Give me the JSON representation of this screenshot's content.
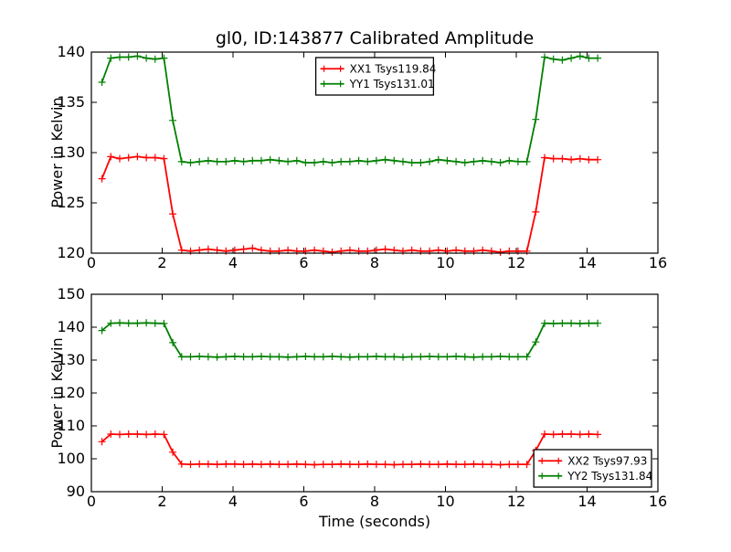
{
  "figure": {
    "background": "#ffffff",
    "axis_color": "#000000"
  },
  "chart_data": [
    {
      "type": "line",
      "title": "gl0, ID:143877 Calibrated Amplitude",
      "xlabel": "",
      "ylabel": "Power in Kelvin",
      "xlim": [
        0,
        16
      ],
      "ylim": [
        120,
        140
      ],
      "xticks": [
        0,
        2,
        4,
        6,
        8,
        10,
        12,
        14,
        16
      ],
      "yticks": [
        120,
        125,
        130,
        135,
        140
      ],
      "grid": false,
      "legend_position": "upper center",
      "x": [
        0.3,
        0.55,
        0.8,
        1.05,
        1.3,
        1.55,
        1.8,
        2.05,
        2.3,
        2.55,
        2.8,
        3.05,
        3.3,
        3.55,
        3.8,
        4.05,
        4.3,
        4.55,
        4.8,
        5.05,
        5.3,
        5.55,
        5.8,
        6.05,
        6.3,
        6.55,
        6.8,
        7.05,
        7.3,
        7.55,
        7.8,
        8.05,
        8.3,
        8.55,
        8.8,
        9.05,
        9.3,
        9.55,
        9.8,
        10.05,
        10.3,
        10.55,
        10.8,
        11.05,
        11.3,
        11.55,
        11.8,
        12.05,
        12.3,
        12.55,
        12.8,
        13.05,
        13.3,
        13.55,
        13.8,
        14.05,
        14.3
      ],
      "series": [
        {
          "name": "XX1 Tsys119.84",
          "color": "#ff0000",
          "marker": "+",
          "y": [
            127.4,
            129.6,
            129.4,
            129.5,
            129.6,
            129.5,
            129.5,
            129.4,
            123.9,
            120.3,
            120.2,
            120.3,
            120.4,
            120.3,
            120.2,
            120.3,
            120.4,
            120.5,
            120.3,
            120.2,
            120.2,
            120.3,
            120.2,
            120.2,
            120.3,
            120.2,
            120.1,
            120.2,
            120.3,
            120.2,
            120.2,
            120.3,
            120.4,
            120.3,
            120.2,
            120.3,
            120.2,
            120.2,
            120.3,
            120.2,
            120.3,
            120.2,
            120.2,
            120.3,
            120.2,
            120.1,
            120.2,
            120.2,
            120.2,
            124.1,
            129.5,
            129.4,
            129.4,
            129.3,
            129.4,
            129.3,
            129.3
          ]
        },
        {
          "name": "YY1 Tsys131.01",
          "color": "#008000",
          "marker": "+",
          "y": [
            137.0,
            139.4,
            139.5,
            139.5,
            139.6,
            139.4,
            139.3,
            139.4,
            133.2,
            129.1,
            129.0,
            129.1,
            129.2,
            129.1,
            129.1,
            129.2,
            129.1,
            129.2,
            129.2,
            129.3,
            129.2,
            129.1,
            129.2,
            129.0,
            129.0,
            129.1,
            129.0,
            129.1,
            129.1,
            129.2,
            129.1,
            129.2,
            129.3,
            129.2,
            129.1,
            129.0,
            129.0,
            129.1,
            129.3,
            129.2,
            129.1,
            129.0,
            129.1,
            129.2,
            129.1,
            129.0,
            129.2,
            129.1,
            129.1,
            133.3,
            139.5,
            139.3,
            139.2,
            139.4,
            139.6,
            139.4,
            139.4
          ]
        }
      ]
    },
    {
      "type": "line",
      "title": "",
      "xlabel": "Time (seconds)",
      "ylabel": "Power in Kelvin",
      "xlim": [
        0,
        16
      ],
      "ylim": [
        90,
        150
      ],
      "xticks": [
        0,
        2,
        4,
        6,
        8,
        10,
        12,
        14,
        16
      ],
      "yticks": [
        90,
        100,
        110,
        120,
        130,
        140,
        150
      ],
      "grid": false,
      "legend_position": "lower right",
      "x": [
        0.3,
        0.55,
        0.8,
        1.05,
        1.3,
        1.55,
        1.8,
        2.05,
        2.3,
        2.55,
        2.8,
        3.05,
        3.3,
        3.55,
        3.8,
        4.05,
        4.3,
        4.55,
        4.8,
        5.05,
        5.3,
        5.55,
        5.8,
        6.05,
        6.3,
        6.55,
        6.8,
        7.05,
        7.3,
        7.55,
        7.8,
        8.05,
        8.3,
        8.55,
        8.8,
        9.05,
        9.3,
        9.55,
        9.8,
        10.05,
        10.3,
        10.55,
        10.8,
        11.05,
        11.3,
        11.55,
        11.8,
        12.05,
        12.3,
        12.55,
        12.8,
        13.05,
        13.3,
        13.55,
        13.8,
        14.05,
        14.3
      ],
      "series": [
        {
          "name": "XX2 Tsys97.93",
          "color": "#ff0000",
          "marker": "+",
          "y": [
            105.2,
            107.5,
            107.4,
            107.5,
            107.5,
            107.4,
            107.5,
            107.4,
            102.0,
            98.4,
            98.3,
            98.4,
            98.4,
            98.3,
            98.4,
            98.4,
            98.3,
            98.4,
            98.3,
            98.4,
            98.3,
            98.3,
            98.4,
            98.3,
            98.2,
            98.3,
            98.3,
            98.4,
            98.3,
            98.3,
            98.4,
            98.3,
            98.3,
            98.2,
            98.3,
            98.3,
            98.4,
            98.3,
            98.3,
            98.4,
            98.3,
            98.3,
            98.4,
            98.3,
            98.3,
            98.2,
            98.3,
            98.3,
            98.3,
            102.5,
            107.5,
            107.4,
            107.5,
            107.5,
            107.4,
            107.5,
            107.4
          ]
        },
        {
          "name": "YY2 Tsys131.84",
          "color": "#008000",
          "marker": "+",
          "y": [
            139.0,
            141.2,
            141.3,
            141.2,
            141.2,
            141.3,
            141.2,
            141.1,
            135.3,
            131.0,
            131.0,
            131.1,
            131.0,
            130.9,
            131.0,
            131.1,
            131.0,
            131.0,
            131.1,
            131.0,
            131.0,
            130.9,
            131.0,
            131.1,
            131.0,
            131.0,
            131.1,
            131.0,
            130.9,
            131.0,
            131.0,
            131.1,
            131.0,
            131.0,
            130.9,
            131.0,
            131.0,
            131.1,
            131.0,
            131.0,
            131.1,
            131.0,
            130.9,
            131.0,
            131.0,
            131.1,
            131.0,
            131.0,
            131.0,
            135.5,
            141.2,
            141.1,
            141.2,
            141.2,
            141.1,
            141.2,
            141.2
          ]
        }
      ]
    }
  ]
}
